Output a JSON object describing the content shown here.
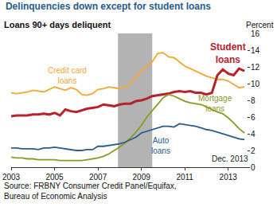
{
  "chart_data": {
    "type": "line",
    "title": "Delinquencies down except for student loans",
    "y_label": "Loans 90+ days deliquent",
    "y_unit": "Percent",
    "annotations": [
      "Dec. 2013"
    ],
    "source": "Source: FRBNY Consumer Credit Panel/Equifax, Bureau of Economic Analysis",
    "x": [
      2003.0,
      2003.25,
      2003.5,
      2003.75,
      2004.0,
      2004.25,
      2004.5,
      2004.75,
      2005.0,
      2005.25,
      2005.5,
      2005.75,
      2006.0,
      2006.25,
      2006.5,
      2006.75,
      2007.0,
      2007.25,
      2007.5,
      2007.75,
      2008.0,
      2008.25,
      2008.5,
      2008.75,
      2009.0,
      2009.25,
      2009.5,
      2009.75,
      2010.0,
      2010.25,
      2010.5,
      2010.75,
      2011.0,
      2011.25,
      2011.5,
      2011.75,
      2012.0,
      2012.25,
      2012.5,
      2012.75,
      2013.0,
      2013.25,
      2013.5,
      2013.75
    ],
    "series": [
      {
        "name": "Credit card loans",
        "color": "#f5a733",
        "values": [
          8.9,
          8.8,
          8.9,
          9.0,
          9.2,
          9.1,
          9.0,
          9.3,
          9.6,
          9.4,
          9.2,
          9.5,
          9.3,
          8.7,
          8.6,
          8.8,
          9.3,
          9.4,
          9.6,
          9.5,
          9.4,
          9.6,
          10.0,
          10.8,
          11.6,
          12.0,
          12.6,
          13.6,
          13.7,
          13.2,
          13.1,
          12.6,
          12.1,
          11.8,
          11.5,
          11.2,
          10.9,
          10.7,
          10.5,
          10.5,
          10.3,
          9.9,
          9.5,
          9.6
        ]
      },
      {
        "name": "Student loans",
        "color": "#b8222a",
        "values": [
          6.1,
          6.2,
          6.2,
          6.2,
          6.3,
          6.3,
          6.4,
          6.3,
          6.5,
          6.2,
          6.9,
          6.7,
          6.6,
          6.8,
          7.0,
          7.1,
          7.2,
          7.5,
          7.4,
          7.3,
          7.5,
          7.6,
          7.6,
          7.9,
          8.0,
          8.2,
          8.5,
          8.6,
          8.7,
          8.8,
          9.0,
          9.1,
          9.0,
          9.1,
          8.9,
          8.9,
          8.7,
          8.9,
          11.0,
          11.7,
          11.2,
          11.0,
          11.8,
          11.5
        ]
      },
      {
        "name": "Mortgage loans",
        "color": "#8c9a1f",
        "values": [
          1.2,
          1.1,
          1.1,
          1.0,
          1.0,
          0.9,
          0.9,
          0.9,
          0.9,
          0.8,
          0.8,
          0.8,
          0.8,
          0.8,
          0.9,
          1.0,
          1.1,
          1.3,
          1.6,
          2.0,
          2.4,
          2.9,
          3.5,
          4.2,
          5.0,
          6.0,
          6.8,
          7.6,
          8.3,
          8.7,
          8.5,
          8.2,
          7.9,
          7.7,
          7.6,
          7.5,
          7.2,
          6.9,
          6.6,
          6.4,
          5.9,
          5.3,
          4.6,
          4.1
        ]
      },
      {
        "name": "Auto loans",
        "color": "#2b5c8e",
        "values": [
          2.3,
          2.3,
          2.2,
          2.2,
          2.2,
          2.1,
          2.3,
          2.3,
          2.4,
          2.3,
          2.2,
          2.1,
          2.0,
          2.0,
          2.1,
          2.1,
          2.5,
          2.5,
          2.6,
          2.7,
          2.8,
          3.0,
          3.3,
          3.6,
          4.1,
          4.3,
          4.5,
          4.7,
          4.9,
          4.9,
          4.8,
          5.2,
          5.1,
          5.0,
          4.9,
          4.7,
          4.5,
          4.4,
          4.2,
          4.0,
          3.8,
          3.6,
          3.4,
          3.3
        ]
      }
    ],
    "recession": [
      2007.92,
      2009.5
    ],
    "xlim": [
      2003,
      2014
    ],
    "xticks": [
      2003,
      2005,
      2007,
      2009,
      2011,
      2013
    ],
    "ylim": [
      0,
      16
    ],
    "yticks": [
      0,
      2,
      4,
      6,
      8,
      10,
      12,
      14,
      16
    ],
    "grid": false
  }
}
